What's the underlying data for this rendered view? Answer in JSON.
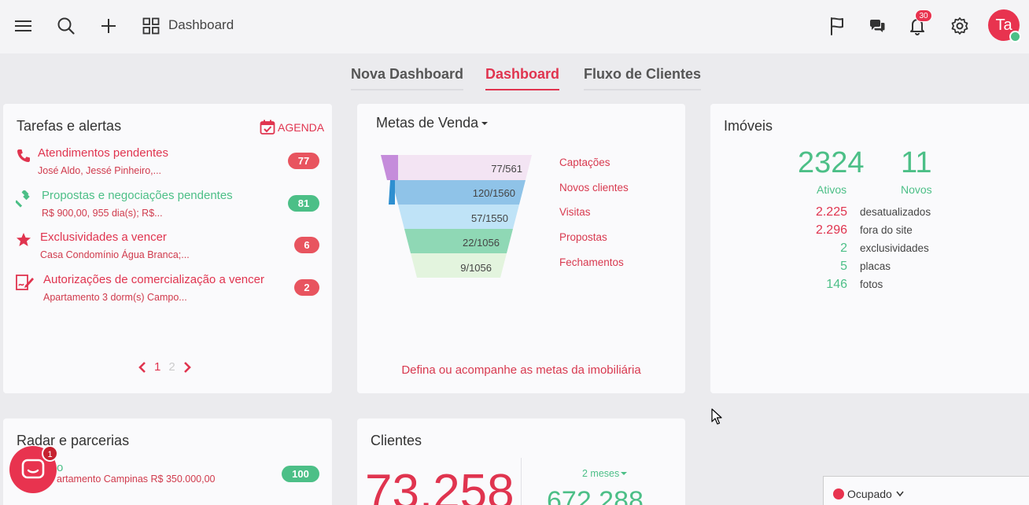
{
  "header": {
    "title": "Dashboard",
    "notifications_count": "30",
    "avatar_initials": "Ta"
  },
  "tabs": [
    {
      "label": "Nova Dashboard"
    },
    {
      "label": "Dashboard"
    },
    {
      "label": "Fluxo de Clientes"
    }
  ],
  "tarefas": {
    "title": "Tarefas e alertas",
    "agenda_label": "AGENDA",
    "items": [
      {
        "label": "Atendimentos pendentes",
        "sub": "José Aldo, Jessé Pinheiro,...",
        "count": "77"
      },
      {
        "label": "Propostas e negociações pendentes",
        "sub": "R$ 900,00, 955 dia(s); R$...",
        "count": "81"
      },
      {
        "label": "Exclusividades a vencer",
        "sub": "Casa Condomínio Água Branca;...",
        "count": "6"
      },
      {
        "label": "Autorizações de comercialização a vencer",
        "sub": "Apartamento 3 dorm(s) Campo...",
        "count": "2"
      }
    ],
    "pages": [
      "1",
      "2"
    ]
  },
  "metas": {
    "title": "Metas de Venda",
    "funnel": [
      {
        "value": "77/561",
        "label": "Captações"
      },
      {
        "value": "120/1560",
        "label": "Novos clientes"
      },
      {
        "value": "57/1550",
        "label": "Visitas"
      },
      {
        "value": "22/1056",
        "label": "Propostas"
      },
      {
        "value": "9/1056",
        "label": "Fechamentos"
      }
    ],
    "footer": "Defina ou acompanhe as metas da imobiliária"
  },
  "imoveis": {
    "title": "Imóveis",
    "ativos": "2324",
    "ativos_label": "Ativos",
    "novos": "11",
    "novos_label": "Novos",
    "stats": [
      {
        "value": "2.225",
        "label": "desatualizados"
      },
      {
        "value": "2.296",
        "label": "fora do site"
      },
      {
        "value": "2",
        "label": "exclusividades"
      },
      {
        "value": "5",
        "label": "placas"
      },
      {
        "value": "146",
        "label": "fotos"
      }
    ]
  },
  "radar": {
    "title": "Radar e parcerias",
    "item_label": "o",
    "item_sub": "artamento Campinas R$ 350.000,00",
    "item_count": "100"
  },
  "clientes": {
    "title": "Clientes",
    "big_value": "73.258",
    "period": "2 meses",
    "second_value": "672.288"
  },
  "chat": {
    "badge": "1"
  },
  "status": {
    "label": "Ocupado"
  }
}
